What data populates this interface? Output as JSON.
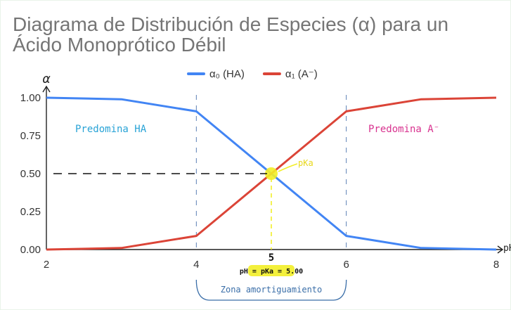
{
  "chart_data": {
    "type": "line",
    "title_line1": "Diagrama de Distribución de Especies (α) para un",
    "title_line2": "Ácido Monoprótico Débil",
    "xlabel": "pH",
    "ylabel": "α",
    "xlim": [
      2,
      8
    ],
    "ylim": [
      0,
      1
    ],
    "x_ticks": [
      2,
      4,
      6,
      8
    ],
    "x_tick_labels": [
      "2",
      "4",
      "6",
      "8"
    ],
    "y_ticks": [
      0,
      0.25,
      0.5,
      0.75,
      1
    ],
    "y_tick_labels": [
      "0.00",
      "0.25",
      "0.50",
      "0.75",
      "1.00"
    ],
    "legend_position": "top-center",
    "grid": false,
    "x": [
      2,
      3,
      4,
      5,
      6,
      7,
      8
    ],
    "series": [
      {
        "name": "α₀ (HA)",
        "color": "#4285f4",
        "values": [
          1.0,
          0.99,
          0.91,
          0.5,
          0.09,
          0.01,
          0.0
        ]
      },
      {
        "name": "α₁ (A⁻)",
        "color": "#db4437",
        "values": [
          0.0,
          0.01,
          0.09,
          0.5,
          0.91,
          0.99,
          1.0
        ]
      }
    ],
    "annotations": {
      "region_left": "Predomina HA",
      "region_right": "Predomina A⁻",
      "pka_label": "pKa",
      "pka_x_label": "5",
      "pka_value_label": "pH = pKa = 5.00",
      "buffer_zone": "Zona amortiguamiento",
      "pka_x": 5,
      "pka_y": 0.5,
      "buffer_range": [
        4,
        6
      ],
      "color_left": "#29a3d6",
      "color_right": "#d8338f",
      "color_marker": "#f2ee27",
      "color_buffer": "#3a6ea8"
    }
  }
}
